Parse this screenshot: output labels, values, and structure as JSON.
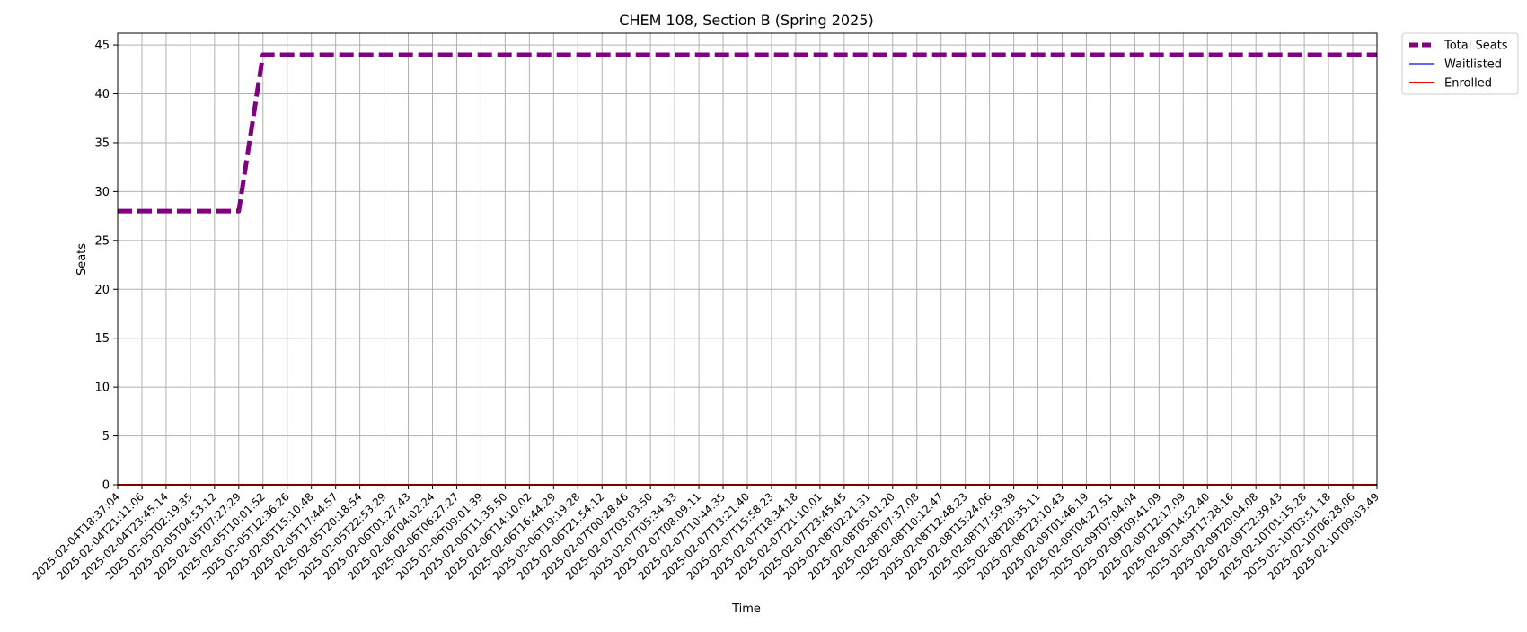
{
  "chart_data": {
    "type": "line",
    "title": "CHEM 108, Section B (Spring 2025)",
    "xlabel": "Time",
    "ylabel": "Seats",
    "ylim": [
      0,
      46.2
    ],
    "yticks": [
      0,
      5,
      10,
      15,
      20,
      25,
      30,
      35,
      40,
      45
    ],
    "grid": true,
    "legend_position": "outside top-right",
    "x": [
      "2025-02-04T18:37:04",
      "2025-02-04T21:11:06",
      "2025-02-04T23:45:14",
      "2025-02-05T02:19:35",
      "2025-02-05T04:53:12",
      "2025-02-05T07:27:29",
      "2025-02-05T10:01:52",
      "2025-02-05T12:36:26",
      "2025-02-05T15:10:48",
      "2025-02-05T17:44:57",
      "2025-02-05T20:18:54",
      "2025-02-05T22:53:29",
      "2025-02-06T01:27:43",
      "2025-02-06T04:02:24",
      "2025-02-06T06:27:27",
      "2025-02-06T09:01:39",
      "2025-02-06T11:35:50",
      "2025-02-06T14:10:02",
      "2025-02-06T16:44:29",
      "2025-02-06T19:19:28",
      "2025-02-06T21:54:12",
      "2025-02-07T00:28:46",
      "2025-02-07T03:03:50",
      "2025-02-07T05:34:33",
      "2025-02-07T08:09:11",
      "2025-02-07T10:44:35",
      "2025-02-07T13:21:40",
      "2025-02-07T15:58:23",
      "2025-02-07T18:34:18",
      "2025-02-07T21:10:01",
      "2025-02-07T23:45:45",
      "2025-02-08T02:21:31",
      "2025-02-08T05:01:20",
      "2025-02-08T07:37:08",
      "2025-02-08T10:12:47",
      "2025-02-08T12:48:23",
      "2025-02-08T15:24:06",
      "2025-02-08T17:59:39",
      "2025-02-08T20:35:11",
      "2025-02-08T23:10:43",
      "2025-02-09T01:46:19",
      "2025-02-09T04:27:51",
      "2025-02-09T07:04:04",
      "2025-02-09T09:41:09",
      "2025-02-09T12:17:09",
      "2025-02-09T14:52:40",
      "2025-02-09T17:28:16",
      "2025-02-09T20:04:08",
      "2025-02-09T22:39:43",
      "2025-02-10T01:15:28",
      "2025-02-10T03:51:18",
      "2025-02-10T06:28:06",
      "2025-02-10T09:03:49"
    ],
    "series": [
      {
        "name": "Total Seats",
        "color": "#800080",
        "style": "dashed",
        "values": [
          28,
          28,
          28,
          28,
          28,
          28,
          44,
          44,
          44,
          44,
          44,
          44,
          44,
          44,
          44,
          44,
          44,
          44,
          44,
          44,
          44,
          44,
          44,
          44,
          44,
          44,
          44,
          44,
          44,
          44,
          44,
          44,
          44,
          44,
          44,
          44,
          44,
          44,
          44,
          44,
          44,
          44,
          44,
          44,
          44,
          44,
          44,
          44,
          44,
          44,
          44,
          44,
          44
        ]
      },
      {
        "name": "Waitlisted",
        "color": "#3333ff",
        "style": "solid",
        "values": [
          0,
          0,
          0,
          0,
          0,
          0,
          0,
          0,
          0,
          0,
          0,
          0,
          0,
          0,
          0,
          0,
          0,
          0,
          0,
          0,
          0,
          0,
          0,
          0,
          0,
          0,
          0,
          0,
          0,
          0,
          0,
          0,
          0,
          0,
          0,
          0,
          0,
          0,
          0,
          0,
          0,
          0,
          0,
          0,
          0,
          0,
          0,
          0,
          0,
          0,
          0,
          0,
          0
        ]
      },
      {
        "name": "Enrolled",
        "color": "#ff0000",
        "style": "solid",
        "values": [
          0,
          0,
          0,
          0,
          0,
          0,
          0,
          0,
          0,
          0,
          0,
          0,
          0,
          0,
          0,
          0,
          0,
          0,
          0,
          0,
          0,
          0,
          0,
          0,
          0,
          0,
          0,
          0,
          0,
          0,
          0,
          0,
          0,
          0,
          0,
          0,
          0,
          0,
          0,
          0,
          0,
          0,
          0,
          0,
          0,
          0,
          0,
          0,
          0,
          0,
          0,
          0,
          0
        ]
      }
    ]
  }
}
